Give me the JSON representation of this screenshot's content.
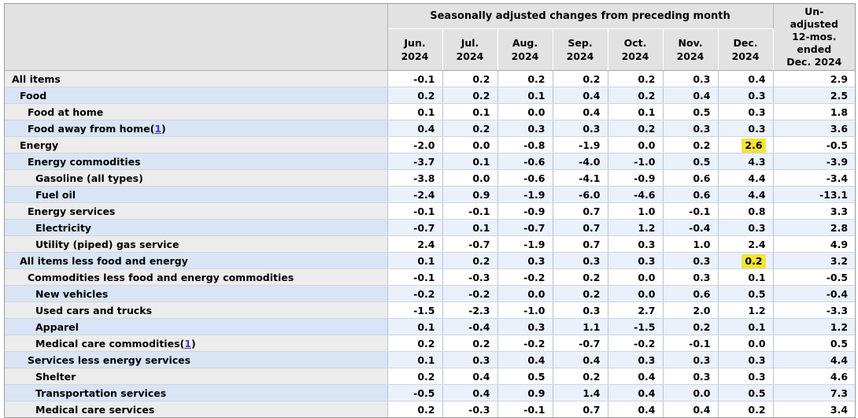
{
  "footnote_format": {
    "open": "(",
    "close": ")"
  },
  "chart_data": {
    "type": "table",
    "highlight_color": "#f4e434",
    "group_title": "Seasonally adjusted changes from preceding month",
    "month_columns": [
      "Jun.\n2024",
      "Jul.\n2024",
      "Aug.\n2024",
      "Sep.\n2024",
      "Oct.\n2024",
      "Nov.\n2024",
      "Dec.\n2024"
    ],
    "unadjusted_column": "Un-\nadjusted\n12-mos.\nended\nDec. 2024",
    "rows": [
      {
        "label": "All items",
        "indent": 0,
        "values": [
          "-0.1",
          "0.2",
          "0.2",
          "0.2",
          "0.2",
          "0.3",
          "0.4"
        ],
        "year_value": "2.9"
      },
      {
        "label": "Food",
        "indent": 1,
        "values": [
          "0.2",
          "0.2",
          "0.1",
          "0.4",
          "0.2",
          "0.4",
          "0.3"
        ],
        "year_value": "2.5"
      },
      {
        "label": "Food at home",
        "indent": 2,
        "values": [
          "0.1",
          "0.1",
          "0.0",
          "0.4",
          "0.1",
          "0.5",
          "0.3"
        ],
        "year_value": "1.8"
      },
      {
        "label": "Food away from home",
        "footnote_ref": "1",
        "indent": 2,
        "values": [
          "0.4",
          "0.2",
          "0.3",
          "0.3",
          "0.2",
          "0.3",
          "0.3"
        ],
        "year_value": "3.6"
      },
      {
        "label": "Energy",
        "indent": 1,
        "values": [
          "-2.0",
          "0.0",
          "-0.8",
          "-1.9",
          "0.0",
          "0.2",
          "2.6"
        ],
        "highlight": 6,
        "year_value": "-0.5"
      },
      {
        "label": "Energy commodities",
        "indent": 2,
        "values": [
          "-3.7",
          "0.1",
          "-0.6",
          "-4.0",
          "-1.0",
          "0.5",
          "4.3"
        ],
        "year_value": "-3.9"
      },
      {
        "label": "Gasoline (all types)",
        "indent": 3,
        "values": [
          "-3.8",
          "0.0",
          "-0.6",
          "-4.1",
          "-0.9",
          "0.6",
          "4.4"
        ],
        "year_value": "-3.4"
      },
      {
        "label": "Fuel oil",
        "indent": 3,
        "values": [
          "-2.4",
          "0.9",
          "-1.9",
          "-6.0",
          "-4.6",
          "0.6",
          "4.4"
        ],
        "year_value": "-13.1"
      },
      {
        "label": "Energy services",
        "indent": 2,
        "values": [
          "-0.1",
          "-0.1",
          "-0.9",
          "0.7",
          "1.0",
          "-0.1",
          "0.8"
        ],
        "year_value": "3.3"
      },
      {
        "label": "Electricity",
        "indent": 3,
        "values": [
          "-0.7",
          "0.1",
          "-0.7",
          "0.7",
          "1.2",
          "-0.4",
          "0.3"
        ],
        "year_value": "2.8"
      },
      {
        "label": "Utility (piped) gas service",
        "indent": 3,
        "values": [
          "2.4",
          "-0.7",
          "-1.9",
          "0.7",
          "0.3",
          "1.0",
          "2.4"
        ],
        "year_value": "4.9"
      },
      {
        "label": "All items less food and energy",
        "indent": 1,
        "values": [
          "0.1",
          "0.2",
          "0.3",
          "0.3",
          "0.3",
          "0.3",
          "0.2"
        ],
        "highlight": 6,
        "year_value": "3.2"
      },
      {
        "label": "Commodities less food and energy commodities",
        "indent": 2,
        "values": [
          "-0.1",
          "-0.3",
          "-0.2",
          "0.2",
          "0.0",
          "0.3",
          "0.1"
        ],
        "year_value": "-0.5"
      },
      {
        "label": "New vehicles",
        "indent": 3,
        "values": [
          "-0.2",
          "-0.2",
          "0.0",
          "0.2",
          "0.0",
          "0.6",
          "0.5"
        ],
        "year_value": "-0.4"
      },
      {
        "label": "Used cars and trucks",
        "indent": 3,
        "values": [
          "-1.5",
          "-2.3",
          "-1.0",
          "0.3",
          "2.7",
          "2.0",
          "1.2"
        ],
        "year_value": "-3.3"
      },
      {
        "label": "Apparel",
        "indent": 3,
        "values": [
          "0.1",
          "-0.4",
          "0.3",
          "1.1",
          "-1.5",
          "0.2",
          "0.1"
        ],
        "year_value": "1.2"
      },
      {
        "label": "Medical care commodities",
        "footnote_ref": "1",
        "indent": 3,
        "values": [
          "0.2",
          "0.2",
          "-0.2",
          "-0.7",
          "-0.2",
          "-0.1",
          "0.0"
        ],
        "year_value": "0.5"
      },
      {
        "label": "Services less energy services",
        "indent": 2,
        "values": [
          "0.1",
          "0.3",
          "0.4",
          "0.4",
          "0.3",
          "0.3",
          "0.3"
        ],
        "year_value": "4.4"
      },
      {
        "label": "Shelter",
        "indent": 3,
        "values": [
          "0.2",
          "0.4",
          "0.5",
          "0.2",
          "0.4",
          "0.3",
          "0.3"
        ],
        "year_value": "4.6"
      },
      {
        "label": "Transportation services",
        "indent": 3,
        "values": [
          "-0.5",
          "0.4",
          "0.9",
          "1.4",
          "0.4",
          "0.0",
          "0.5"
        ],
        "year_value": "7.3"
      },
      {
        "label": "Medical care services",
        "indent": 3,
        "values": [
          "0.2",
          "-0.3",
          "-0.1",
          "0.7",
          "0.4",
          "0.4",
          "0.2"
        ],
        "year_value": "3.4"
      }
    ]
  }
}
